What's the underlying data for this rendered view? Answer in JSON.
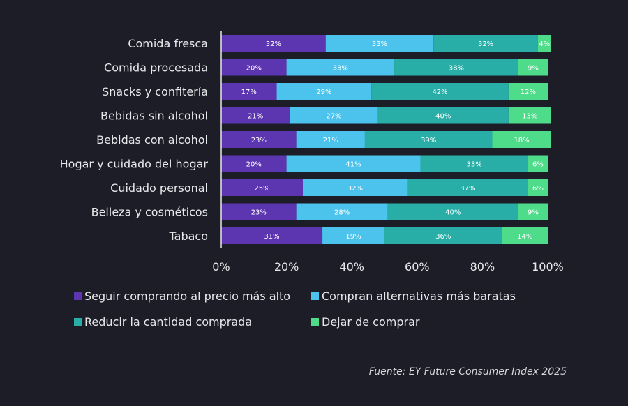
{
  "chart_data": {
    "type": "bar",
    "orientation": "horizontal",
    "stacked": true,
    "categories": [
      "Comida fresca",
      "Comida procesada",
      "Snacks y confitería",
      "Bebidas sin alcohol",
      "Bebidas con alcohol",
      "Hogar y cuidado del hogar",
      "Cuidado personal",
      "Belleza y cosméticos",
      "Tabaco"
    ],
    "series": [
      {
        "name": "Seguir comprando al precio más alto",
        "color": "#5c35b0",
        "values": [
          32,
          20,
          17,
          21,
          23,
          20,
          25,
          23,
          31
        ]
      },
      {
        "name": "Compran alternativas más baratas",
        "color": "#4cc3ec",
        "values": [
          33,
          33,
          29,
          27,
          21,
          41,
          32,
          28,
          19
        ]
      },
      {
        "name": "Reducir la cantidad comprada",
        "color": "#28aea7",
        "values": [
          32,
          38,
          42,
          40,
          39,
          33,
          37,
          40,
          36
        ]
      },
      {
        "name": "Dejar de comprar",
        "color": "#4fdc8a",
        "values": [
          4,
          9,
          12,
          13,
          18,
          6,
          6,
          9,
          14
        ]
      }
    ],
    "xlim": [
      0,
      100
    ],
    "xticks": [
      "0%",
      "20%",
      "40%",
      "60%",
      "80%",
      "100%"
    ],
    "title": "",
    "xlabel": "",
    "ylabel": "",
    "grid": false,
    "legend_position": "bottom-left"
  },
  "source_note": "Fuente: EY Future Consumer Index 2025",
  "colors": {
    "background": "#1d1d27",
    "axis": "#e8e8ec"
  }
}
